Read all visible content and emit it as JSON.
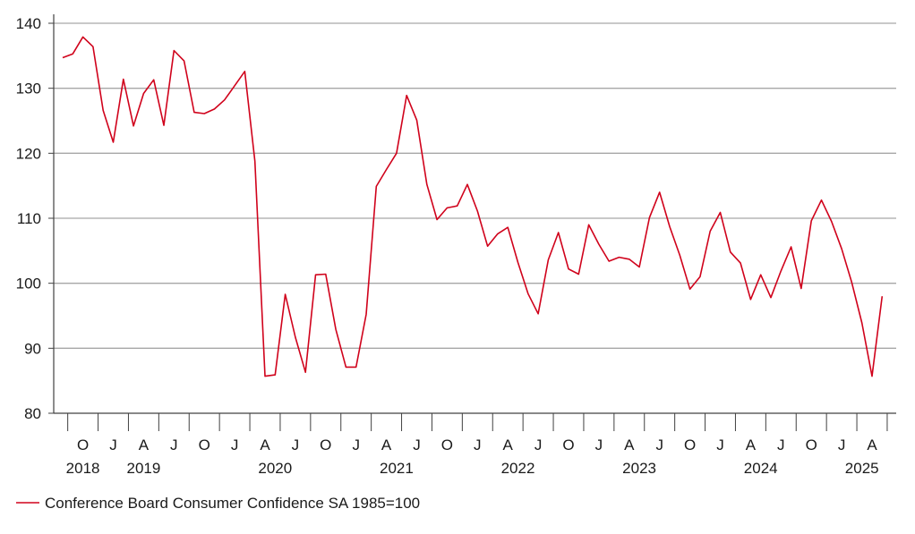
{
  "chart_data": {
    "type": "line",
    "title": "",
    "xlabel": "",
    "ylabel": "",
    "ylim": [
      80,
      140
    ],
    "y_ticks": [
      80,
      90,
      100,
      110,
      120,
      130,
      140
    ],
    "grid": "horizontal",
    "legend_position": "bottom-left",
    "colors": {
      "series": "#d0021b",
      "grid": "#a6a6a6",
      "axis": "#404040"
    },
    "x_month_ticks": [
      "O",
      "J",
      "A",
      "J",
      "O",
      "J",
      "A",
      "J",
      "O",
      "J",
      "A",
      "J",
      "O",
      "J",
      "A",
      "J",
      "O",
      "J",
      "A",
      "J",
      "O",
      "J",
      "A",
      "J",
      "O",
      "J",
      "A"
    ],
    "x_month_tick_dates": [
      "2018-10",
      "2019-01",
      "2019-04",
      "2019-07",
      "2019-10",
      "2020-01",
      "2020-04",
      "2020-07",
      "2020-10",
      "2021-01",
      "2021-04",
      "2021-07",
      "2021-10",
      "2022-01",
      "2022-04",
      "2022-07",
      "2022-10",
      "2023-01",
      "2023-04",
      "2023-07",
      "2023-10",
      "2024-01",
      "2024-04",
      "2024-07",
      "2024-10",
      "2025-01",
      "2025-04"
    ],
    "x_year_labels": [
      "2018",
      "2019",
      "2020",
      "2021",
      "2022",
      "2023",
      "2024",
      "2025"
    ],
    "x_year_label_dates": [
      "2018-10",
      "2019-04",
      "2020-05",
      "2021-05",
      "2022-05",
      "2023-05",
      "2024-05",
      "2025-03"
    ],
    "series": [
      {
        "name": "Conference Board Consumer Confidence SA 1985=100",
        "start": "2018-08",
        "values": [
          134.7,
          135.3,
          137.9,
          136.4,
          126.6,
          121.7,
          131.4,
          124.2,
          129.2,
          131.3,
          124.3,
          135.8,
          134.2,
          126.3,
          126.1,
          126.8,
          128.2,
          130.4,
          132.6,
          118.8,
          85.7,
          85.9,
          98.3,
          91.7,
          86.3,
          101.3,
          101.4,
          92.9,
          87.1,
          87.1,
          95.2,
          114.9,
          117.5,
          120.0,
          128.9,
          125.1,
          115.2,
          109.8,
          111.6,
          111.9,
          115.2,
          111.1,
          105.7,
          107.6,
          108.6,
          103.2,
          98.4,
          95.3,
          103.6,
          107.8,
          102.2,
          101.4,
          109.0,
          106.0,
          103.4,
          104.0,
          103.7,
          102.5,
          110.1,
          114.0,
          108.7,
          104.3,
          99.1,
          101.0,
          108.0,
          110.9,
          104.8,
          103.1,
          97.5,
          101.3,
          97.8,
          101.9,
          105.6,
          99.2,
          109.6,
          112.8,
          109.5,
          105.3,
          100.1,
          93.9,
          85.7,
          98.0
        ]
      }
    ]
  }
}
